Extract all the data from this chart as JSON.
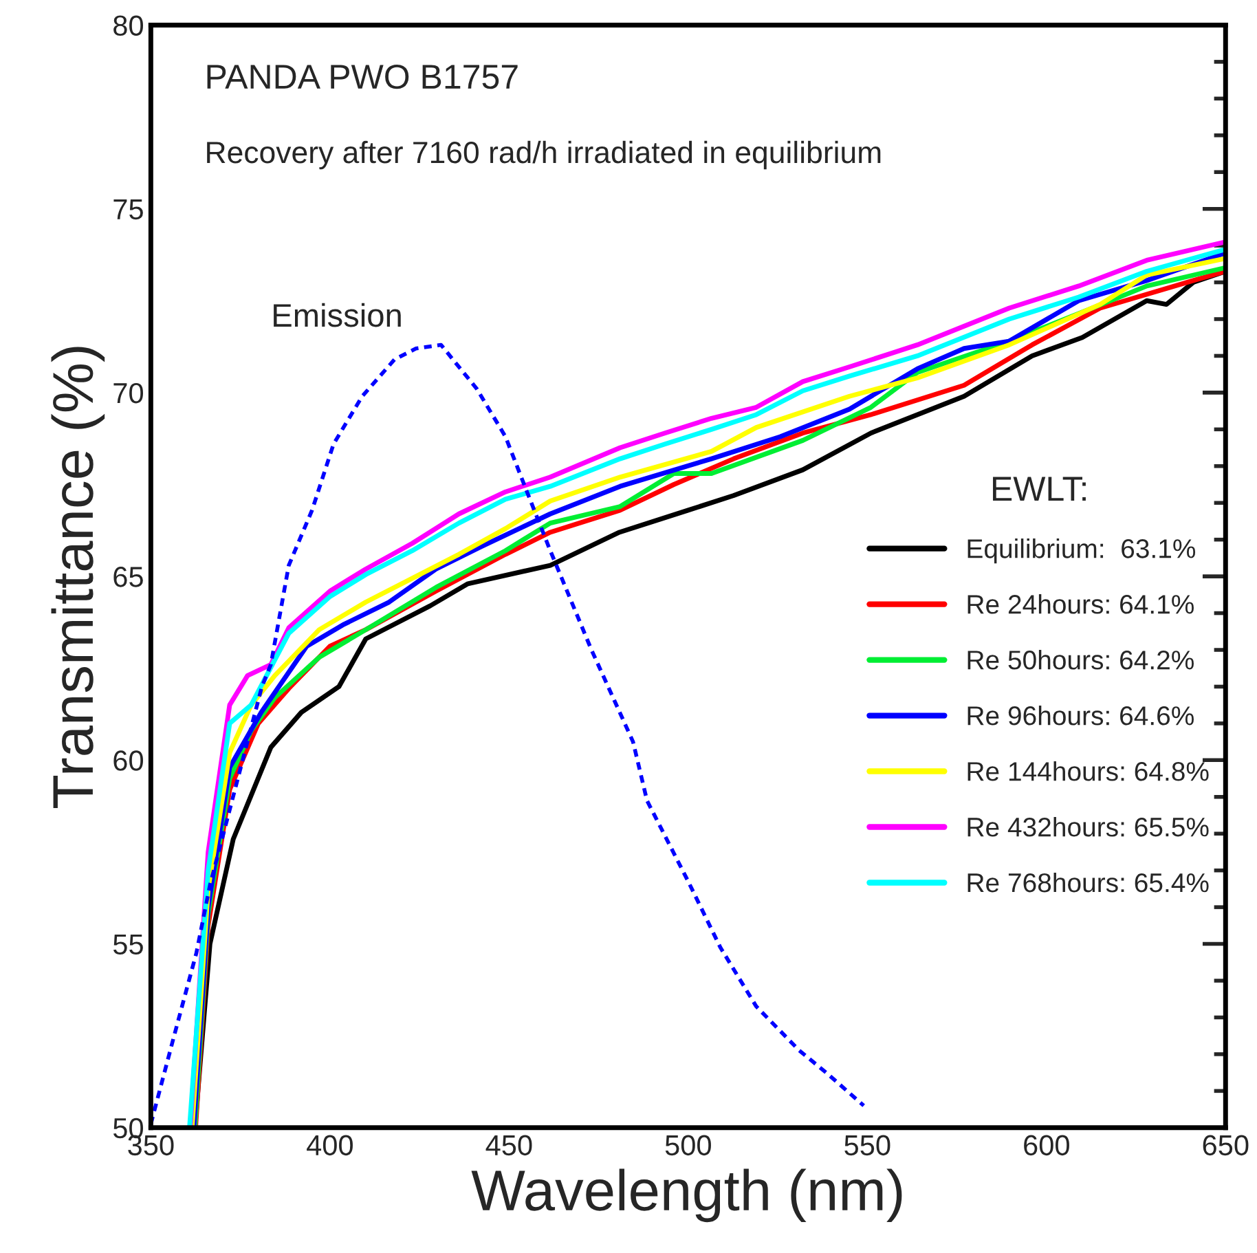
{
  "chart_data": {
    "type": "line",
    "title": "PANDA PWO B1757",
    "subtitle": "Recovery after 7160 rad/h irradiated in equilibrium",
    "xlabel": "Wavelength (nm)",
    "ylabel": "Transmittance (%)",
    "legend_title": "EWLT:",
    "xlim": [
      350,
      650
    ],
    "xticks": [
      350,
      400,
      450,
      500,
      550,
      600,
      650
    ],
    "ylim": [
      50,
      80
    ],
    "yticks": [
      50,
      55,
      60,
      65,
      70,
      75,
      80
    ],
    "grid": false,
    "legend": "right",
    "marker": "none",
    "series": [
      {
        "name": "Equilibrium:  63.1%",
        "color": "#000000",
        "line_style": "solid",
        "x": [
          362.3,
          366.5,
          373,
          383.5,
          392,
          402.5,
          410,
          428,
          438.5,
          461.5,
          480.8,
          500,
          512.7,
          532,
          551,
          577,
          596,
          610,
          628,
          633.5,
          641,
          650
        ],
        "values": [
          50,
          55,
          57.85,
          60.35,
          61.3,
          62,
          63.3,
          64.2,
          64.8,
          65.3,
          66.2,
          66.8,
          67.2,
          67.9,
          68.9,
          69.9,
          71,
          71.5,
          72.5,
          72.4,
          73,
          73.3
        ]
      },
      {
        "name": "Re 24hours: 64.1%",
        "color": "#ff0000",
        "line_style": "solid",
        "x": [
          362.5,
          366,
          372,
          380,
          388.5,
          400,
          410,
          429.6,
          449,
          461.5,
          481,
          496,
          512.7,
          532,
          551,
          577,
          596,
          615,
          641,
          650
        ],
        "values": [
          50,
          55.5,
          59.2,
          61,
          61.95,
          63.1,
          63.55,
          64.6,
          65.6,
          66.2,
          66.8,
          67.5,
          68.2,
          68.9,
          69.4,
          70.2,
          71.3,
          72.3,
          73.05,
          73.3
        ]
      },
      {
        "name": "Re 50hours: 64.2%",
        "color": "#00ee33",
        "line_style": "solid",
        "x": [
          362.3,
          366,
          372,
          378,
          384.6,
          397,
          410,
          429.6,
          449,
          461.5,
          481,
          496,
          506.5,
          532,
          551,
          564,
          589.6,
          609,
          628,
          650
        ],
        "values": [
          50,
          55.8,
          59.5,
          60.8,
          61.7,
          62.8,
          63.55,
          64.7,
          65.7,
          66.45,
          66.9,
          67.8,
          67.8,
          68.7,
          69.6,
          70.55,
          71.4,
          72.15,
          72.9,
          73.4
        ]
      },
      {
        "name": "Re 96hours: 64.6%",
        "color": "#0000ff",
        "line_style": "solid",
        "x": [
          362,
          366,
          372,
          380.8,
          393.5,
          404,
          416.5,
          429.6,
          442,
          461.5,
          481,
          506.5,
          525.7,
          545,
          564,
          577,
          589.6,
          609,
          628,
          650
        ],
        "values": [
          50,
          56,
          59.8,
          61.3,
          63.1,
          63.7,
          64.3,
          65.2,
          65.8,
          66.7,
          67.45,
          68.2,
          68.8,
          69.55,
          70.65,
          71.2,
          71.4,
          72.5,
          73.05,
          73.8
        ]
      },
      {
        "name": "Re 144hours: 64.8%",
        "color": "#ffff00",
        "line_style": "solid",
        "x": [
          361.5,
          366,
          372,
          378,
          384.6,
          397,
          410,
          423,
          436,
          449,
          461.5,
          481,
          506.5,
          519,
          545,
          564,
          589.6,
          615,
          628,
          650
        ],
        "values": [
          50,
          56.5,
          60.2,
          61.5,
          62.3,
          63.55,
          64.3,
          64.95,
          65.6,
          66.3,
          67.05,
          67.7,
          68.4,
          69.05,
          69.9,
          70.4,
          71.3,
          72.4,
          73.2,
          73.65
        ]
      },
      {
        "name": "Re 432hours: 65.5%",
        "color": "#ff00ff",
        "line_style": "solid",
        "x": [
          361,
          366,
          372,
          377,
          383.5,
          388.5,
          400,
          410,
          423,
          436,
          449,
          461.5,
          481,
          493.5,
          506.5,
          519,
          532,
          545,
          564,
          589.6,
          609,
          628,
          650
        ],
        "values": [
          50,
          57.5,
          61.5,
          62.3,
          62.6,
          63.6,
          64.6,
          65.2,
          65.9,
          66.7,
          67.3,
          67.7,
          68.5,
          68.9,
          69.3,
          69.6,
          70.3,
          70.7,
          71.3,
          72.3,
          72.9,
          73.6,
          74.1
        ]
      },
      {
        "name": "Re 768hours: 65.4%",
        "color": "#00ffff",
        "line_style": "solid",
        "x": [
          360.8,
          366,
          372,
          378,
          388.5,
          400,
          410,
          423,
          436,
          449,
          461.5,
          481,
          493.5,
          506.5,
          519,
          532,
          545,
          564,
          589.6,
          609,
          628,
          650
        ],
        "values": [
          50,
          57,
          61,
          61.5,
          63.45,
          64.45,
          65.05,
          65.7,
          66.45,
          67.1,
          67.45,
          68.2,
          68.6,
          69,
          69.4,
          70.05,
          70.45,
          71,
          72,
          72.6,
          73.3,
          73.9
        ]
      },
      {
        "name": "Emission",
        "color": "#0000ff",
        "line_style": "dashed",
        "x": [
          350,
          356.5,
          362.7,
          366.5,
          381,
          383.5,
          388.5,
          395,
          401,
          409,
          418,
          424,
          431,
          441,
          449,
          455,
          461.5,
          473,
          484.6,
          488.5,
          500,
          509,
          519,
          531,
          538.5,
          549
        ],
        "values": [
          50.1,
          52.5,
          54.75,
          56.6,
          62,
          62.6,
          65.3,
          66.8,
          68.6,
          69.9,
          70.9,
          71.2,
          71.3,
          70.1,
          68.8,
          67.3,
          65.7,
          63,
          60.5,
          58.9,
          56.7,
          54.9,
          53.3,
          52.1,
          51.5,
          50.6
        ]
      }
    ]
  }
}
